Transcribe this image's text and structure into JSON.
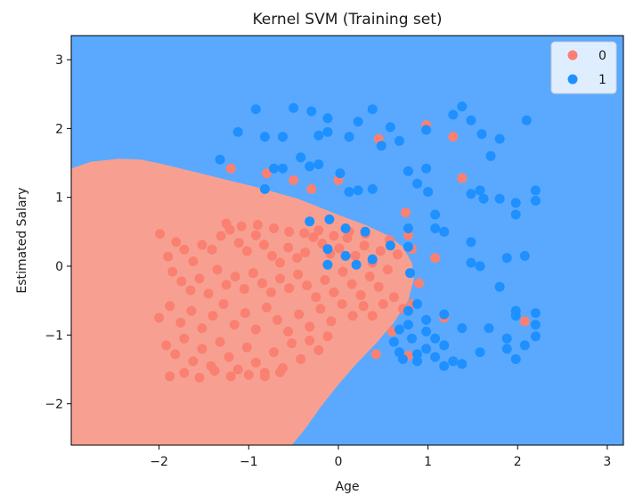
{
  "chart_data": {
    "type": "scatter",
    "title": "Kernel SVM (Training set)",
    "xlabel": "Age",
    "ylabel": "Estimated Salary",
    "xlim": [
      -2.98,
      3.18
    ],
    "ylim": [
      -2.6,
      3.35
    ],
    "xticks": [
      -2,
      -1,
      0,
      1,
      2,
      3
    ],
    "xtick_labels": [
      "−2",
      "−1",
      "0",
      "1",
      "2",
      "3"
    ],
    "yticks": [
      -2,
      -1,
      0,
      1,
      2,
      3
    ],
    "ytick_labels": [
      "−2",
      "−1",
      "0",
      "1",
      "2",
      "3"
    ],
    "grid": false,
    "legend_position": "top-right",
    "background": {
      "region_1_color": "#5aa9ff",
      "region_0_color": "#f7a091",
      "region_0_boundary": [
        [
          -2.98,
          -2.6
        ],
        [
          -2.98,
          1.42
        ],
        [
          -2.75,
          1.52
        ],
        [
          -2.45,
          1.56
        ],
        [
          -2.2,
          1.55
        ],
        [
          -1.95,
          1.48
        ],
        [
          -1.7,
          1.4
        ],
        [
          -1.45,
          1.32
        ],
        [
          -1.2,
          1.24
        ],
        [
          -0.95,
          1.16
        ],
        [
          -0.7,
          1.07
        ],
        [
          -0.45,
          0.98
        ],
        [
          -0.2,
          0.85
        ],
        [
          0.05,
          0.72
        ],
        [
          0.3,
          0.6
        ],
        [
          0.55,
          0.45
        ],
        [
          0.72,
          0.28
        ],
        [
          0.82,
          0.05
        ],
        [
          0.84,
          -0.2
        ],
        [
          0.78,
          -0.5
        ],
        [
          0.62,
          -0.82
        ],
        [
          0.42,
          -1.12
        ],
        [
          0.2,
          -1.42
        ],
        [
          0.0,
          -1.72
        ],
        [
          -0.2,
          -2.05
        ],
        [
          -0.38,
          -2.38
        ],
        [
          -0.52,
          -2.6
        ]
      ]
    },
    "series": [
      {
        "name": "0",
        "color": "#fa8072",
        "points": [
          [
            -1.99,
            0.47
          ],
          [
            -1.9,
            0.14
          ],
          [
            -1.81,
            0.35
          ],
          [
            -1.72,
            0.24
          ],
          [
            -1.62,
            0.07
          ],
          [
            -1.52,
            0.31
          ],
          [
            -1.41,
            0.24
          ],
          [
            -1.31,
            0.44
          ],
          [
            -1.21,
            0.53
          ],
          [
            -1.11,
            0.34
          ],
          [
            -1.02,
            0.22
          ],
          [
            -0.92,
            0.45
          ],
          [
            -0.83,
            0.31
          ],
          [
            -0.74,
            0.15
          ],
          [
            -0.65,
            0.05
          ],
          [
            -0.56,
            0.27
          ],
          [
            -0.46,
            0.12
          ],
          [
            -0.37,
            0.2
          ],
          [
            -0.28,
            0.42
          ],
          [
            -0.18,
            0.33
          ],
          [
            -0.09,
            0.18
          ],
          [
            0.01,
            0.26
          ],
          [
            0.1,
            0.41
          ],
          [
            0.19,
            0.15
          ],
          [
            0.29,
            0.3
          ],
          [
            0.38,
            0.05
          ],
          [
            0.47,
            0.22
          ],
          [
            0.57,
            0.38
          ],
          [
            0.66,
            0.17
          ],
          [
            -1.85,
            -0.08
          ],
          [
            -1.75,
            -0.22
          ],
          [
            -1.65,
            -0.35
          ],
          [
            -1.55,
            -0.18
          ],
          [
            -1.45,
            -0.4
          ],
          [
            -1.35,
            -0.05
          ],
          [
            -1.25,
            -0.27
          ],
          [
            -1.15,
            -0.15
          ],
          [
            -1.05,
            -0.33
          ],
          [
            -0.95,
            -0.1
          ],
          [
            -0.85,
            -0.25
          ],
          [
            -0.75,
            -0.38
          ],
          [
            -0.65,
            -0.18
          ],
          [
            -0.55,
            -0.32
          ],
          [
            -0.45,
            -0.12
          ],
          [
            -0.35,
            -0.28
          ],
          [
            -0.25,
            -0.45
          ],
          [
            -0.15,
            -0.2
          ],
          [
            -0.05,
            -0.38
          ],
          [
            0.05,
            -0.08
          ],
          [
            0.15,
            -0.26
          ],
          [
            0.25,
            -0.42
          ],
          [
            0.35,
            -0.15
          ],
          [
            0.45,
            -0.3
          ],
          [
            0.55,
            -0.05
          ],
          [
            -2.0,
            -0.75
          ],
          [
            -1.88,
            -0.58
          ],
          [
            -1.76,
            -0.82
          ],
          [
            -1.64,
            -0.65
          ],
          [
            -1.52,
            -0.9
          ],
          [
            -1.4,
            -0.72
          ],
          [
            -1.28,
            -0.55
          ],
          [
            -1.16,
            -0.85
          ],
          [
            -1.04,
            -0.68
          ],
          [
            -0.92,
            -0.92
          ],
          [
            -0.8,
            -0.6
          ],
          [
            -0.68,
            -0.78
          ],
          [
            -0.56,
            -0.95
          ],
          [
            -0.44,
            -0.7
          ],
          [
            -0.32,
            -0.88
          ],
          [
            -0.2,
            -0.62
          ],
          [
            -0.08,
            -0.8
          ],
          [
            0.04,
            -0.55
          ],
          [
            0.16,
            -0.72
          ],
          [
            0.28,
            -0.58
          ],
          [
            -1.92,
            -1.15
          ],
          [
            -1.82,
            -1.28
          ],
          [
            -1.72,
            -1.05
          ],
          [
            -1.62,
            -1.38
          ],
          [
            -1.52,
            -1.2
          ],
          [
            -1.42,
            -1.45
          ],
          [
            -1.32,
            -1.1
          ],
          [
            -1.22,
            -1.32
          ],
          [
            -1.12,
            -1.5
          ],
          [
            -1.02,
            -1.18
          ],
          [
            -0.92,
            -1.4
          ],
          [
            -0.82,
            -1.55
          ],
          [
            -0.72,
            -1.25
          ],
          [
            -0.62,
            -1.48
          ],
          [
            -0.52,
            -1.12
          ],
          [
            -0.42,
            -1.35
          ],
          [
            -0.32,
            -1.08
          ],
          [
            -0.22,
            -1.22
          ],
          [
            -0.12,
            -1.02
          ],
          [
            -1.88,
            -1.6
          ],
          [
            -1.72,
            -1.55
          ],
          [
            -1.55,
            -1.62
          ],
          [
            -1.38,
            -1.52
          ],
          [
            -1.2,
            -1.6
          ],
          [
            -1.0,
            -1.58
          ],
          [
            -0.82,
            -1.6
          ],
          [
            -0.65,
            -1.54
          ],
          [
            -1.25,
            0.62
          ],
          [
            -1.08,
            0.58
          ],
          [
            -0.9,
            0.6
          ],
          [
            -0.72,
            0.55
          ],
          [
            -0.55,
            0.5
          ],
          [
            -0.38,
            0.48
          ],
          [
            -0.22,
            0.52
          ],
          [
            -0.05,
            0.44
          ],
          [
            0.12,
            0.5
          ],
          [
            0.3,
            0.47
          ],
          [
            0.75,
            0.78
          ],
          [
            0.78,
            0.45
          ],
          [
            0.82,
            0.25
          ],
          [
            0.9,
            -0.25
          ],
          [
            0.6,
            -0.95
          ],
          [
            0.42,
            -1.28
          ],
          [
            0.38,
            -0.72
          ],
          [
            0.5,
            -0.55
          ],
          [
            0.62,
            -0.45
          ],
          [
            0.72,
            -0.62
          ],
          [
            0.45,
            1.85
          ],
          [
            0.98,
            2.05
          ],
          [
            1.28,
            1.88
          ],
          [
            1.38,
            1.28
          ],
          [
            0.78,
            -1.3
          ],
          [
            -1.2,
            1.42
          ],
          [
            -0.8,
            1.35
          ],
          [
            -0.5,
            1.25
          ],
          [
            -0.3,
            1.12
          ],
          [
            0.0,
            1.25
          ],
          [
            1.08,
            0.12
          ],
          [
            1.18,
            -0.75
          ],
          [
            2.08,
            -0.8
          ],
          [
            0.82,
            -0.55
          ]
        ]
      },
      {
        "name": "1",
        "color": "#1e90ff",
        "points": [
          [
            -0.92,
            2.28
          ],
          [
            -1.12,
            1.95
          ],
          [
            -1.32,
            1.55
          ],
          [
            -0.82,
            1.88
          ],
          [
            -0.62,
            1.88
          ],
          [
            -0.5,
            2.3
          ],
          [
            -0.3,
            2.25
          ],
          [
            -0.12,
            2.15
          ],
          [
            -0.12,
            1.95
          ],
          [
            0.12,
            1.88
          ],
          [
            0.22,
            2.1
          ],
          [
            0.38,
            2.28
          ],
          [
            0.58,
            2.02
          ],
          [
            0.68,
            1.82
          ],
          [
            0.98,
            1.98
          ],
          [
            1.28,
            2.2
          ],
          [
            1.38,
            2.32
          ],
          [
            1.48,
            2.12
          ],
          [
            1.6,
            1.92
          ],
          [
            1.8,
            1.85
          ],
          [
            2.1,
            2.12
          ],
          [
            1.7,
            1.6
          ],
          [
            0.48,
            1.75
          ],
          [
            -0.22,
            1.9
          ],
          [
            -0.22,
            1.48
          ],
          [
            -0.42,
            1.58
          ],
          [
            -0.62,
            1.42
          ],
          [
            -0.72,
            1.42
          ],
          [
            -0.82,
            1.12
          ],
          [
            -0.32,
            1.45
          ],
          [
            0.02,
            1.35
          ],
          [
            0.12,
            1.08
          ],
          [
            0.22,
            1.1
          ],
          [
            0.38,
            1.12
          ],
          [
            0.78,
            1.38
          ],
          [
            0.98,
            1.42
          ],
          [
            0.88,
            1.2
          ],
          [
            1.0,
            1.08
          ],
          [
            1.08,
            0.75
          ],
          [
            1.48,
            1.05
          ],
          [
            1.58,
            1.1
          ],
          [
            1.62,
            0.98
          ],
          [
            1.8,
            0.98
          ],
          [
            1.98,
            0.92
          ],
          [
            2.2,
            1.1
          ],
          [
            2.2,
            0.95
          ],
          [
            1.98,
            0.75
          ],
          [
            -0.32,
            0.65
          ],
          [
            -0.1,
            0.68
          ],
          [
            0.08,
            0.55
          ],
          [
            0.3,
            0.5
          ],
          [
            0.58,
            0.3
          ],
          [
            0.78,
            0.55
          ],
          [
            0.78,
            0.28
          ],
          [
            1.08,
            0.55
          ],
          [
            1.18,
            0.5
          ],
          [
            1.48,
            0.35
          ],
          [
            1.48,
            0.05
          ],
          [
            1.58,
            0.0
          ],
          [
            1.88,
            0.12
          ],
          [
            2.08,
            0.15
          ],
          [
            1.8,
            -0.3
          ],
          [
            -0.12,
            0.25
          ],
          [
            -0.12,
            0.02
          ],
          [
            0.08,
            0.15
          ],
          [
            0.2,
            0.02
          ],
          [
            0.38,
            0.1
          ],
          [
            0.8,
            -0.1
          ],
          [
            0.88,
            -0.55
          ],
          [
            0.78,
            -0.65
          ],
          [
            0.98,
            -0.78
          ],
          [
            1.18,
            -0.7
          ],
          [
            1.38,
            -0.9
          ],
          [
            1.08,
            -1.05
          ],
          [
            0.98,
            -1.2
          ],
          [
            0.88,
            -1.28
          ],
          [
            0.68,
            -1.25
          ],
          [
            0.62,
            -1.1
          ],
          [
            0.82,
            -1.05
          ],
          [
            0.72,
            -1.35
          ],
          [
            0.88,
            -1.38
          ],
          [
            1.08,
            -1.32
          ],
          [
            1.18,
            -1.45
          ],
          [
            1.28,
            -1.38
          ],
          [
            1.38,
            -1.42
          ],
          [
            1.58,
            -1.25
          ],
          [
            1.68,
            -0.9
          ],
          [
            1.88,
            -1.05
          ],
          [
            1.88,
            -1.2
          ],
          [
            1.98,
            -0.65
          ],
          [
            1.98,
            -1.35
          ],
          [
            2.08,
            -1.15
          ],
          [
            2.2,
            -1.02
          ],
          [
            2.2,
            -0.85
          ],
          [
            2.2,
            -0.68
          ],
          [
            1.98,
            -0.72
          ],
          [
            0.68,
            -0.92
          ],
          [
            0.78,
            -0.85
          ],
          [
            0.98,
            -0.95
          ],
          [
            1.18,
            -1.15
          ]
        ]
      }
    ]
  }
}
